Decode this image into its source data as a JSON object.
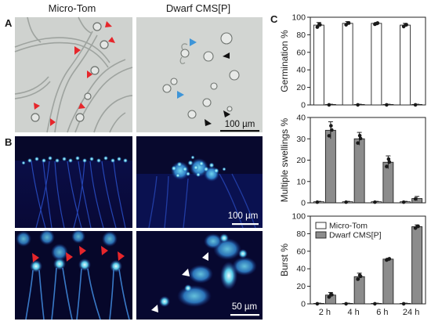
{
  "panel_letters": {
    "a": "A",
    "b": "B",
    "c": "C"
  },
  "column_titles": {
    "left": "Micro-Tom",
    "right": "Dwarf CMS[P]"
  },
  "scale_bars": {
    "a": "100 µm",
    "b_top": "100 µm",
    "b_bottom": "50 µm"
  },
  "colors": {
    "red_arrow": "#e6262b",
    "blue_arrow": "#3e95d8",
    "black_arrow": "#111111",
    "micro_tom_bar": "#ffffff",
    "dwarf_bar": "#8c8c8c",
    "dot": "#1a1a1a",
    "fluor_bg": "#07082a",
    "brightfield_bg": "#cfd3d0"
  },
  "chart_data": [
    {
      "type": "bar",
      "ylabel": "Germination %",
      "ylim": [
        0,
        100
      ],
      "yticks": [
        0,
        20,
        40,
        60,
        80,
        100
      ],
      "categories": [
        "2 h",
        "4 h",
        "6 h",
        "24 h"
      ],
      "series": [
        {
          "name": "Micro-Tom",
          "values": [
            91,
            93,
            93,
            91
          ],
          "err": [
            3,
            2,
            1,
            2
          ]
        },
        {
          "name": "Dwarf CMS[P]",
          "values": [
            0.5,
            0.5,
            0.5,
            0.5
          ],
          "err": [
            0.3,
            0.3,
            0.3,
            0.3
          ]
        }
      ],
      "show_xticklabels": false
    },
    {
      "type": "bar",
      "ylabel": "Multiple swellings %",
      "ylim": [
        0,
        40
      ],
      "yticks": [
        0,
        10,
        20,
        30,
        40
      ],
      "categories": [
        "2 h",
        "4 h",
        "6 h",
        "24 h"
      ],
      "series": [
        {
          "name": "Micro-Tom",
          "values": [
            0.5,
            0.5,
            0.5,
            0.5
          ],
          "err": [
            0.2,
            0.2,
            0.2,
            0.2
          ]
        },
        {
          "name": "Dwarf CMS[P]",
          "values": [
            34,
            30,
            19,
            2
          ],
          "err": [
            4,
            3,
            3,
            1
          ]
        }
      ],
      "show_xticklabels": false
    },
    {
      "type": "bar",
      "ylabel": "Burst %",
      "ylim": [
        0,
        100
      ],
      "yticks": [
        0,
        20,
        40,
        60,
        80,
        100
      ],
      "categories": [
        "2 h",
        "4 h",
        "6 h",
        "24 h"
      ],
      "series": [
        {
          "name": "Micro-Tom",
          "values": [
            0.5,
            0.5,
            0.5,
            0.5
          ],
          "err": [
            0.3,
            0.3,
            0.3,
            0.3
          ]
        },
        {
          "name": "Dwarf CMS[P]",
          "values": [
            10,
            31,
            51,
            88
          ],
          "err": [
            3,
            4,
            1,
            2
          ]
        }
      ],
      "legend": [
        "Micro-Tom",
        "Dwarf CMS[P]"
      ],
      "legend_position": "top-left",
      "show_xticklabels": true
    }
  ]
}
